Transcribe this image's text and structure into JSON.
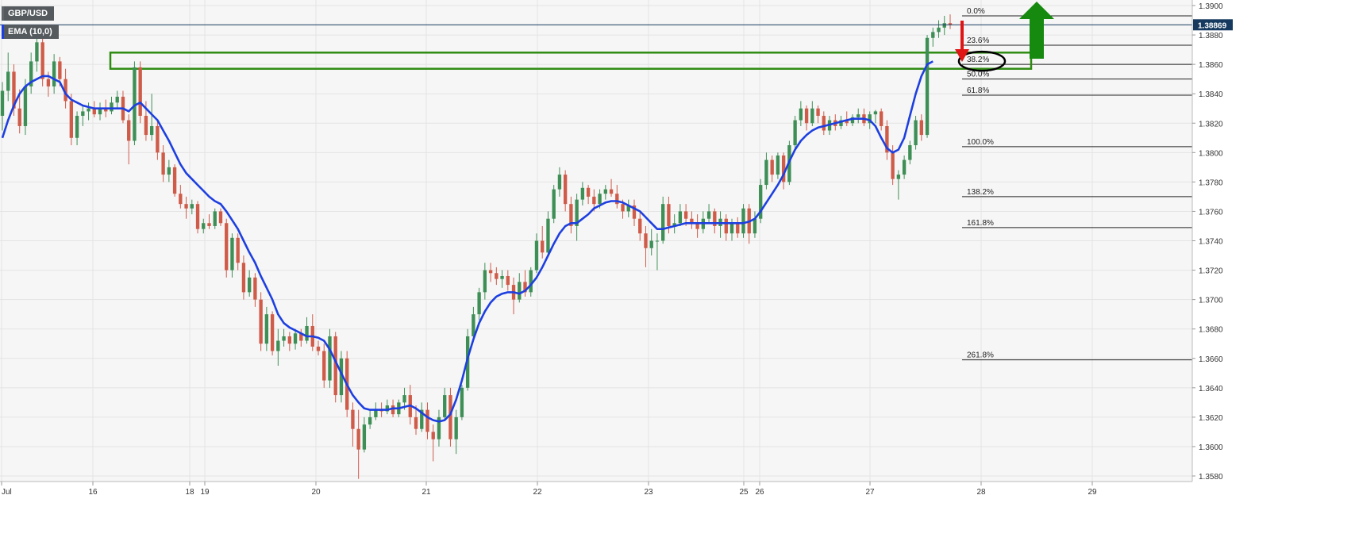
{
  "legend": {
    "symbol": "GBP/USD",
    "indicator": "EMA (10,0)"
  },
  "price_tag": {
    "value": "1.38869"
  },
  "colors": {
    "background": "#f6f6f6",
    "grid": "#e4e4e4",
    "bull": "#3e8f56",
    "bear": "#cf5b49",
    "ema": "#1d3fe0",
    "zone": "#2e8b12",
    "arrow_down": "#e01515",
    "arrow_up": "#158a0f",
    "fib_line": "#222222",
    "price_tag": "#163a5f",
    "axis_text": "#333333"
  },
  "chart_data": {
    "type": "candlestick",
    "title": "",
    "symbol": "GBP/USD",
    "indicator": "EMA (10,0)",
    "ylim": [
      1.3575,
      1.3905
    ],
    "y_ticks": [
      "1.3900",
      "1.3880",
      "1.3860",
      "1.3840",
      "1.3820",
      "1.3800",
      "1.3780",
      "1.3760",
      "1.3740",
      "1.3720",
      "1.3700",
      "1.3680",
      "1.3660",
      "1.3640",
      "1.3620",
      "1.3600",
      "1.3580"
    ],
    "x_ticks": [
      "Jul",
      "16",
      "18",
      "19",
      "20",
      "21",
      "22",
      "23",
      "25",
      "26",
      "27",
      "28",
      "29"
    ],
    "last_price": 1.38869,
    "ohlc": [
      [
        1.3825,
        1.3848,
        1.3815,
        1.3842
      ],
      [
        1.3842,
        1.3868,
        1.3835,
        1.3855
      ],
      [
        1.3855,
        1.386,
        1.3825,
        1.383
      ],
      [
        1.383,
        1.3843,
        1.3813,
        1.3818
      ],
      [
        1.3818,
        1.385,
        1.3812,
        1.3845
      ],
      [
        1.3845,
        1.3868,
        1.384,
        1.3862
      ],
      [
        1.3862,
        1.388,
        1.3855,
        1.3875
      ],
      [
        1.3875,
        1.3878,
        1.3845,
        1.385
      ],
      [
        1.385,
        1.3855,
        1.3838,
        1.3845
      ],
      [
        1.3845,
        1.3867,
        1.384,
        1.3862
      ],
      [
        1.3862,
        1.3865,
        1.3845,
        1.385
      ],
      [
        1.385,
        1.3857,
        1.383,
        1.3835
      ],
      [
        1.3835,
        1.384,
        1.3805,
        1.381
      ],
      [
        1.381,
        1.3828,
        1.3805,
        1.3825
      ],
      [
        1.3825,
        1.3832,
        1.3818,
        1.3828
      ],
      [
        1.3828,
        1.3834,
        1.3822,
        1.383
      ],
      [
        1.383,
        1.3835,
        1.3824,
        1.3826
      ],
      [
        1.3826,
        1.3834,
        1.3822,
        1.383
      ],
      [
        1.383,
        1.3836,
        1.3824,
        1.3828
      ],
      [
        1.3828,
        1.3838,
        1.3826,
        1.3834
      ],
      [
        1.3834,
        1.3842,
        1.383,
        1.3838
      ],
      [
        1.3838,
        1.3842,
        1.382,
        1.3822
      ],
      [
        1.3822,
        1.3826,
        1.3792,
        1.3808
      ],
      [
        1.3808,
        1.3862,
        1.3805,
        1.3858
      ],
      [
        1.3858,
        1.3862,
        1.382,
        1.3825
      ],
      [
        1.3825,
        1.3835,
        1.3808,
        1.3812
      ],
      [
        1.3812,
        1.384,
        1.3808,
        1.3818
      ],
      [
        1.3818,
        1.3822,
        1.3795,
        1.38
      ],
      [
        1.38,
        1.3805,
        1.378,
        1.3785
      ],
      [
        1.3785,
        1.3795,
        1.378,
        1.379
      ],
      [
        1.379,
        1.3792,
        1.377,
        1.3772
      ],
      [
        1.3772,
        1.3778,
        1.3762,
        1.3765
      ],
      [
        1.3765,
        1.377,
        1.3755,
        1.3762
      ],
      [
        1.3762,
        1.3768,
        1.3758,
        1.3765
      ],
      [
        1.3765,
        1.3767,
        1.3745,
        1.3748
      ],
      [
        1.3748,
        1.3755,
        1.3745,
        1.3752
      ],
      [
        1.3752,
        1.3758,
        1.3748,
        1.375
      ],
      [
        1.375,
        1.3762,
        1.3748,
        1.376
      ],
      [
        1.376,
        1.3762,
        1.375,
        1.3752
      ],
      [
        1.3752,
        1.3755,
        1.3715,
        1.372
      ],
      [
        1.372,
        1.3745,
        1.3715,
        1.3742
      ],
      [
        1.3742,
        1.3745,
        1.372,
        1.3725
      ],
      [
        1.3725,
        1.373,
        1.37,
        1.3705
      ],
      [
        1.3705,
        1.372,
        1.3702,
        1.3715
      ],
      [
        1.3715,
        1.3718,
        1.3695,
        1.37
      ],
      [
        1.37,
        1.3705,
        1.3665,
        1.367
      ],
      [
        1.367,
        1.3695,
        1.3665,
        1.369
      ],
      [
        1.369,
        1.3692,
        1.3662,
        1.3665
      ],
      [
        1.3665,
        1.368,
        1.3655,
        1.3672
      ],
      [
        1.3672,
        1.368,
        1.3668,
        1.3675
      ],
      [
        1.3675,
        1.3678,
        1.3665,
        1.367
      ],
      [
        1.367,
        1.368,
        1.3666,
        1.3677
      ],
      [
        1.3677,
        1.368,
        1.3668,
        1.3672
      ],
      [
        1.3672,
        1.3688,
        1.367,
        1.3682
      ],
      [
        1.3682,
        1.369,
        1.3665,
        1.3668
      ],
      [
        1.3668,
        1.3672,
        1.3662,
        1.3665
      ],
      [
        1.3665,
        1.367,
        1.364,
        1.3645
      ],
      [
        1.3645,
        1.368,
        1.364,
        1.3675
      ],
      [
        1.3675,
        1.3678,
        1.363,
        1.3635
      ],
      [
        1.3635,
        1.3665,
        1.363,
        1.366
      ],
      [
        1.366,
        1.3665,
        1.362,
        1.3625
      ],
      [
        1.3625,
        1.363,
        1.36,
        1.3612
      ],
      [
        1.3612,
        1.3625,
        1.3578,
        1.3598
      ],
      [
        1.3598,
        1.362,
        1.3596,
        1.3615
      ],
      [
        1.3615,
        1.3625,
        1.3612,
        1.362
      ],
      [
        1.362,
        1.363,
        1.3618,
        1.3625
      ],
      [
        1.3625,
        1.363,
        1.362,
        1.3624
      ],
      [
        1.3624,
        1.3632,
        1.3622,
        1.3628
      ],
      [
        1.3628,
        1.3632,
        1.362,
        1.3622
      ],
      [
        1.3622,
        1.3632,
        1.362,
        1.363
      ],
      [
        1.363,
        1.364,
        1.3625,
        1.3635
      ],
      [
        1.3635,
        1.3642,
        1.3615,
        1.362
      ],
      [
        1.362,
        1.3628,
        1.3608,
        1.3612
      ],
      [
        1.3612,
        1.363,
        1.361,
        1.3625
      ],
      [
        1.3625,
        1.363,
        1.3605,
        1.361
      ],
      [
        1.361,
        1.3615,
        1.359,
        1.3605
      ],
      [
        1.3605,
        1.3625,
        1.36,
        1.362
      ],
      [
        1.362,
        1.364,
        1.3618,
        1.3635
      ],
      [
        1.3635,
        1.364,
        1.36,
        1.3605
      ],
      [
        1.3605,
        1.3625,
        1.3595,
        1.362
      ],
      [
        1.362,
        1.3642,
        1.3618,
        1.364
      ],
      [
        1.364,
        1.368,
        1.3638,
        1.3675
      ],
      [
        1.3675,
        1.3695,
        1.3672,
        1.369
      ],
      [
        1.369,
        1.3708,
        1.3686,
        1.3705
      ],
      [
        1.3705,
        1.3725,
        1.37,
        1.372
      ],
      [
        1.372,
        1.3725,
        1.3712,
        1.3718
      ],
      [
        1.3718,
        1.3722,
        1.371,
        1.3714
      ],
      [
        1.3714,
        1.372,
        1.3708,
        1.3716
      ],
      [
        1.3716,
        1.372,
        1.3706,
        1.371
      ],
      [
        1.371,
        1.3715,
        1.369,
        1.37
      ],
      [
        1.37,
        1.3718,
        1.3698,
        1.3712
      ],
      [
        1.3712,
        1.372,
        1.3702,
        1.3705
      ],
      [
        1.3705,
        1.3722,
        1.3702,
        1.372
      ],
      [
        1.372,
        1.3745,
        1.3718,
        1.374
      ],
      [
        1.374,
        1.375,
        1.3728,
        1.3732
      ],
      [
        1.3732,
        1.376,
        1.373,
        1.3755
      ],
      [
        1.3755,
        1.3778,
        1.3752,
        1.3775
      ],
      [
        1.3775,
        1.379,
        1.377,
        1.3785
      ],
      [
        1.3785,
        1.3788,
        1.376,
        1.3765
      ],
      [
        1.3765,
        1.377,
        1.3745,
        1.375
      ],
      [
        1.375,
        1.3772,
        1.374,
        1.3768
      ],
      [
        1.3768,
        1.378,
        1.3764,
        1.3776
      ],
      [
        1.3776,
        1.3778,
        1.3765,
        1.377
      ],
      [
        1.377,
        1.3775,
        1.376,
        1.3765
      ],
      [
        1.3765,
        1.3775,
        1.3762,
        1.3772
      ],
      [
        1.3772,
        1.3778,
        1.3768,
        1.3775
      ],
      [
        1.3775,
        1.3782,
        1.377,
        1.3772
      ],
      [
        1.3772,
        1.3778,
        1.3762,
        1.3765
      ],
      [
        1.3765,
        1.3768,
        1.3755,
        1.376
      ],
      [
        1.376,
        1.3768,
        1.3756,
        1.3764
      ],
      [
        1.3764,
        1.3768,
        1.375,
        1.3755
      ],
      [
        1.3755,
        1.376,
        1.374,
        1.3745
      ],
      [
        1.3745,
        1.375,
        1.3722,
        1.3735
      ],
      [
        1.3735,
        1.3748,
        1.373,
        1.374
      ],
      [
        1.374,
        1.3745,
        1.372,
        1.374
      ],
      [
        1.374,
        1.377,
        1.3738,
        1.3765
      ],
      [
        1.3765,
        1.377,
        1.3745,
        1.375
      ],
      [
        1.375,
        1.3758,
        1.3745,
        1.3752
      ],
      [
        1.3752,
        1.3765,
        1.375,
        1.376
      ],
      [
        1.376,
        1.3765,
        1.375,
        1.3755
      ],
      [
        1.3755,
        1.376,
        1.3748,
        1.3752
      ],
      [
        1.3752,
        1.3758,
        1.3742,
        1.3748
      ],
      [
        1.3748,
        1.376,
        1.3745,
        1.3755
      ],
      [
        1.3755,
        1.3765,
        1.3752,
        1.376
      ],
      [
        1.376,
        1.3762,
        1.3745,
        1.375
      ],
      [
        1.375,
        1.376,
        1.3742,
        1.3755
      ],
      [
        1.3755,
        1.3758,
        1.374,
        1.3745
      ],
      [
        1.3745,
        1.3755,
        1.374,
        1.3752
      ],
      [
        1.3752,
        1.3756,
        1.3742,
        1.3745
      ],
      [
        1.3745,
        1.3765,
        1.3742,
        1.3762
      ],
      [
        1.3762,
        1.3765,
        1.3738,
        1.3745
      ],
      [
        1.3745,
        1.376,
        1.3742,
        1.3755
      ],
      [
        1.3755,
        1.3782,
        1.3752,
        1.3778
      ],
      [
        1.3778,
        1.38,
        1.3775,
        1.3795
      ],
      [
        1.3795,
        1.3798,
        1.378,
        1.3785
      ],
      [
        1.3785,
        1.38,
        1.3782,
        1.3798
      ],
      [
        1.3798,
        1.38,
        1.3775,
        1.378
      ],
      [
        1.378,
        1.3808,
        1.3778,
        1.3805
      ],
      [
        1.3805,
        1.3825,
        1.3802,
        1.3822
      ],
      [
        1.3822,
        1.3835,
        1.3818,
        1.383
      ],
      [
        1.383,
        1.3832,
        1.3815,
        1.382
      ],
      [
        1.382,
        1.3835,
        1.3818,
        1.383
      ],
      [
        1.383,
        1.3832,
        1.382,
        1.3825
      ],
      [
        1.3825,
        1.3828,
        1.3812,
        1.3815
      ],
      [
        1.3815,
        1.3825,
        1.3812,
        1.3822
      ],
      [
        1.3822,
        1.3826,
        1.3815,
        1.3818
      ],
      [
        1.3818,
        1.3825,
        1.3816,
        1.3822
      ],
      [
        1.3822,
        1.3828,
        1.3818,
        1.382
      ],
      [
        1.382,
        1.3826,
        1.3818,
        1.3824
      ],
      [
        1.3824,
        1.383,
        1.382,
        1.3826
      ],
      [
        1.3826,
        1.383,
        1.3818,
        1.382
      ],
      [
        1.382,
        1.3828,
        1.3816,
        1.3826
      ],
      [
        1.3826,
        1.3829,
        1.382,
        1.3828
      ],
      [
        1.3828,
        1.383,
        1.3815,
        1.3818
      ],
      [
        1.3818,
        1.3822,
        1.3795,
        1.38
      ],
      [
        1.38,
        1.3805,
        1.3778,
        1.3782
      ],
      [
        1.3782,
        1.3788,
        1.3768,
        1.3785
      ],
      [
        1.3785,
        1.3798,
        1.3782,
        1.3795
      ],
      [
        1.3795,
        1.3808,
        1.3792,
        1.3805
      ],
      [
        1.3805,
        1.3825,
        1.3802,
        1.3822
      ],
      [
        1.3822,
        1.3826,
        1.3808,
        1.3812
      ],
      [
        1.3812,
        1.388,
        1.381,
        1.3878
      ],
      [
        1.3878,
        1.3885,
        1.3872,
        1.3882
      ],
      [
        1.3882,
        1.389,
        1.3878,
        1.3885
      ],
      [
        1.3885,
        1.3893,
        1.388,
        1.3888
      ],
      [
        1.3888,
        1.3894,
        1.3884,
        1.38869
      ]
    ],
    "ema": [
      1.381,
      1.3822,
      1.3832,
      1.384,
      1.3845,
      1.3848,
      1.385,
      1.3852,
      1.3852,
      1.385,
      1.3848,
      1.384,
      1.3836,
      1.3834,
      1.3832,
      1.3831,
      1.383,
      1.383,
      1.383,
      1.383,
      1.383,
      1.383,
      1.3828,
      1.3832,
      1.3834,
      1.383,
      1.3826,
      1.3822,
      1.3815,
      1.3808,
      1.38,
      1.3792,
      1.3786,
      1.3782,
      1.3778,
      1.3774,
      1.377,
      1.3767,
      1.3765,
      1.376,
      1.3754,
      1.3748,
      1.374,
      1.3732,
      1.3725,
      1.3716,
      1.3708,
      1.37,
      1.369,
      1.3684,
      1.3681,
      1.3679,
      1.3677,
      1.3675,
      1.3675,
      1.3674,
      1.3672,
      1.3666,
      1.3658,
      1.365,
      1.3642,
      1.3635,
      1.363,
      1.3626,
      1.3625,
      1.3625,
      1.3625,
      1.3625,
      1.3626,
      1.3626,
      1.3627,
      1.3628,
      1.3626,
      1.3623,
      1.362,
      1.3618,
      1.3617,
      1.3618,
      1.3622,
      1.3632,
      1.3645,
      1.366,
      1.3673,
      1.3684,
      1.3692,
      1.3698,
      1.3702,
      1.3704,
      1.3705,
      1.3705,
      1.3704,
      1.3706,
      1.371,
      1.3715,
      1.3722,
      1.373,
      1.3738,
      1.3745,
      1.375,
      1.3752,
      1.3752,
      1.3755,
      1.3758,
      1.3762,
      1.3764,
      1.3766,
      1.3767,
      1.3767,
      1.3766,
      1.3764,
      1.3762,
      1.376,
      1.3756,
      1.3752,
      1.3748,
      1.3748,
      1.3749,
      1.375,
      1.3751,
      1.3752,
      1.3752,
      1.3752,
      1.3752,
      1.3752,
      1.3752,
      1.3752,
      1.3752,
      1.3752,
      1.3752,
      1.3752,
      1.3753,
      1.3755,
      1.376,
      1.3766,
      1.3772,
      1.3778,
      1.3785,
      1.3794,
      1.3802,
      1.3808,
      1.3812,
      1.3815,
      1.3817,
      1.3818,
      1.3819,
      1.382,
      1.3821,
      1.3822,
      1.3823,
      1.3823,
      1.3823,
      1.3822,
      1.3818,
      1.381,
      1.3803,
      1.38,
      1.3802,
      1.381,
      1.3825,
      1.384,
      1.3852,
      1.386,
      1.3862
    ],
    "fibonacci": [
      {
        "label": "0.0%",
        "price": 1.3893
      },
      {
        "label": "23.6%",
        "price": 1.3873
      },
      {
        "label": "38.2%",
        "price": 1.386
      },
      {
        "label": "50.0%",
        "price": 1.385
      },
      {
        "label": "61.8%",
        "price": 1.3839
      },
      {
        "label": "100.0%",
        "price": 1.3804
      },
      {
        "label": "138.2%",
        "price": 1.377
      },
      {
        "label": "161.8%",
        "price": 1.3749
      },
      {
        "label": "261.8%",
        "price": 1.3659
      }
    ],
    "zone": {
      "high": 1.3868,
      "low": 1.3857
    },
    "grid": true
  }
}
